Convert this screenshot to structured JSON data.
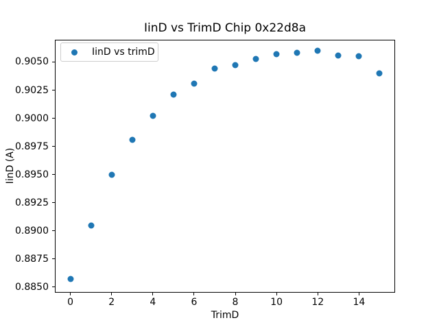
{
  "chart_data": {
    "type": "scatter",
    "title": "IinD vs TrimD Chip 0x22d8a",
    "xlabel": "TrimD",
    "ylabel": "IinD (A)",
    "series": [
      {
        "name": "IinD vs trimD",
        "x": [
          0,
          1,
          2,
          3,
          4,
          5,
          6,
          7,
          8,
          9,
          10,
          11,
          12,
          13,
          14,
          15
        ],
        "y": [
          0.8857,
          0.8905,
          0.895,
          0.8981,
          0.9002,
          0.9021,
          0.9031,
          0.9044,
          0.9047,
          0.9053,
          0.9057,
          0.9058,
          0.906,
          0.9056,
          0.9055,
          0.904
        ]
      }
    ],
    "marker_color": "#1f77b4",
    "xlim": [
      -0.75,
      15.75
    ],
    "ylim": [
      0.8845,
      0.907
    ],
    "x_ticks": [
      0,
      2,
      4,
      6,
      8,
      10,
      12,
      14
    ],
    "x_tick_labels": [
      "0",
      "2",
      "4",
      "6",
      "8",
      "10",
      "12",
      "14"
    ],
    "y_ticks": [
      0.885,
      0.8875,
      0.89,
      0.8925,
      0.895,
      0.8975,
      0.9,
      0.9025,
      0.905
    ],
    "y_tick_labels": [
      "0.8850",
      "0.8875",
      "0.8900",
      "0.8925",
      "0.8950",
      "0.8975",
      "0.9000",
      "0.9025",
      "0.9050"
    ],
    "legend_position": "upper left",
    "grid": false
  }
}
